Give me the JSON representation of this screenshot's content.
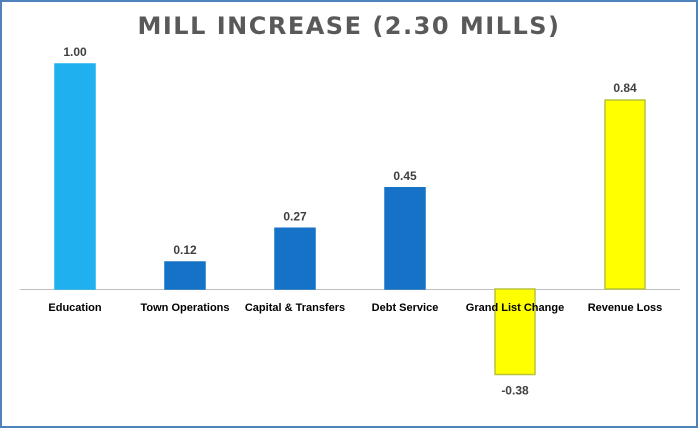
{
  "chart_data": {
    "type": "bar",
    "title": "MILL INCREASE (2.30 MILLS)",
    "categories": [
      "Education",
      "Town Operations",
      "Capital & Transfers",
      "Debt Service",
      "Grand List Change",
      "Revenue Loss"
    ],
    "values": [
      1.0,
      0.12,
      0.27,
      0.45,
      -0.38,
      0.84
    ],
    "data_labels": [
      "1.00",
      "0.12",
      "0.27",
      "0.45",
      "-0.38",
      "0.84"
    ],
    "bar_colors": [
      "#1fb1ef",
      "#1572c6",
      "#1572c6",
      "#1572c6",
      "#ffff00",
      "#ffff00"
    ],
    "bar_border_colors": [
      "#1fb1ef",
      "#1572c6",
      "#1572c6",
      "#1572c6",
      "#b8c33a",
      "#b8c33a"
    ],
    "ylim": [
      -0.38,
      1.0
    ],
    "grid": false,
    "legend": "none"
  }
}
